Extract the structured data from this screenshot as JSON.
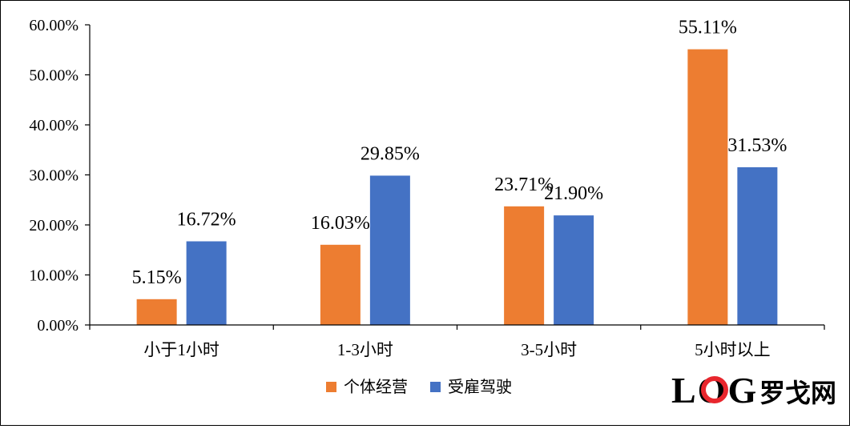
{
  "chart_data": {
    "type": "bar",
    "categories": [
      "小于1小时",
      "1-3小时",
      "3-5小时",
      "5小时以上"
    ],
    "series": [
      {
        "name": "个体经营",
        "color": "#ED7D31",
        "values": [
          5.15,
          16.03,
          23.71,
          55.11
        ]
      },
      {
        "name": "受雇驾驶",
        "color": "#4472C4",
        "values": [
          16.72,
          29.85,
          21.9,
          31.53
        ]
      }
    ],
    "data_labels": [
      [
        "5.15%",
        "16.03%",
        "23.71%",
        "55.11%"
      ],
      [
        "16.72%",
        "29.85%",
        "21.90%",
        "31.53%"
      ]
    ],
    "yticks": [
      "0.00%",
      "10.00%",
      "20.00%",
      "30.00%",
      "40.00%",
      "50.00%",
      "60.00%"
    ],
    "ylim": [
      0,
      60
    ],
    "grid": false,
    "legend_position": "bottom"
  },
  "watermark": {
    "text_latin": "LOG",
    "text_cn": "罗戈网",
    "colors": {
      "gray": "#C9C9C9",
      "red": "#E8262D"
    }
  }
}
